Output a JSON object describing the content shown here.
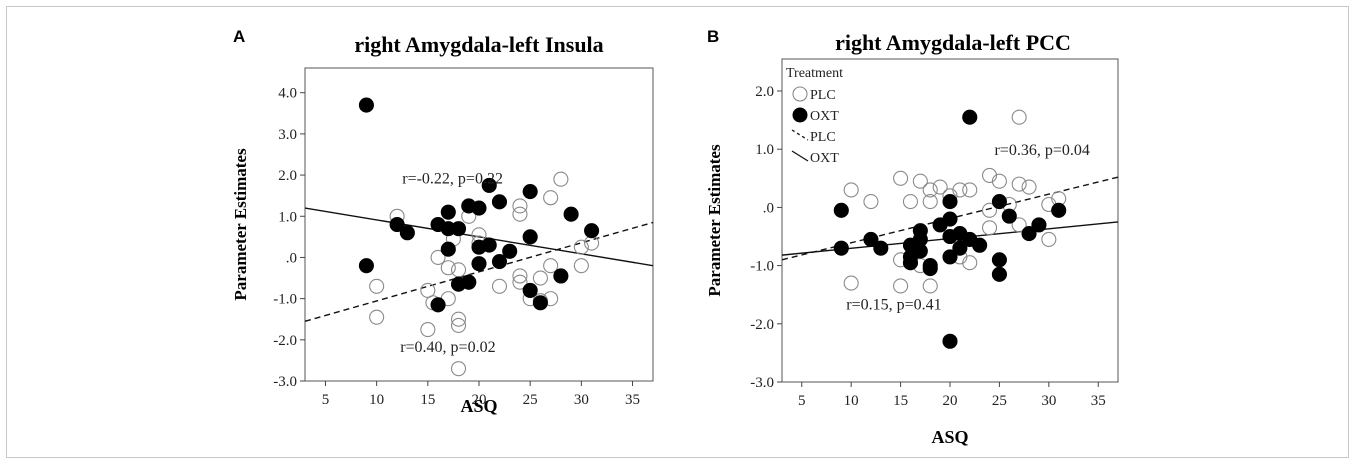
{
  "chart_data": [
    {
      "type": "scatter",
      "panel_label": "A",
      "title": "right Amygdala-left Insula",
      "xlabel": "ASQ",
      "ylabel": "Parameter Estimates",
      "xlim": [
        3,
        37
      ],
      "ylim": [
        -3.0,
        4.6
      ],
      "xticks": [
        5,
        10,
        15,
        20,
        25,
        30,
        35
      ],
      "xtick_labels": [
        "5",
        "10",
        "15",
        "20",
        "25",
        "30",
        "35"
      ],
      "yticks": [
        4.0,
        3.0,
        2.0,
        1.0,
        0.0,
        -1.0,
        -2.0,
        -3.0
      ],
      "ytick_labels": [
        "4.0",
        "3.0",
        "2.0",
        "1.0",
        ".0",
        "-1.0",
        "-2.0",
        "-3.0"
      ],
      "grid": false,
      "legend": null,
      "annotations": [
        {
          "text": "r=-0.22, p=0.22",
          "x": 12.5,
          "y": 1.8
        },
        {
          "text": "r=0.40, p=0.02",
          "x": 12.3,
          "y": -2.3
        }
      ],
      "series": [
        {
          "group": "PLC",
          "marker": "open-circle",
          "color": "#888888",
          "points": [
            [
              10,
              -0.7
            ],
            [
              10,
              -1.45
            ],
            [
              12,
              1.0
            ],
            [
              15,
              -0.8
            ],
            [
              15,
              -1.75
            ],
            [
              15.5,
              -1.1
            ],
            [
              16,
              0.0
            ],
            [
              17,
              -0.25
            ],
            [
              17,
              -1.0
            ],
            [
              17.5,
              0.45
            ],
            [
              18,
              -0.3
            ],
            [
              18,
              -1.5
            ],
            [
              18,
              -1.65
            ],
            [
              18,
              -2.7
            ],
            [
              19,
              1.0
            ],
            [
              19,
              -0.6
            ],
            [
              20,
              0.55
            ],
            [
              20,
              0.35
            ],
            [
              22,
              -0.7
            ],
            [
              24,
              1.25
            ],
            [
              24,
              1.05
            ],
            [
              24,
              -0.45
            ],
            [
              24,
              -0.6
            ],
            [
              25,
              -1.0
            ],
            [
              26,
              -0.5
            ],
            [
              26,
              -1.05
            ],
            [
              27,
              -0.2
            ],
            [
              27,
              1.45
            ],
            [
              27,
              -1.0
            ],
            [
              28,
              1.9
            ],
            [
              30,
              -0.2
            ],
            [
              30,
              0.25
            ],
            [
              31,
              0.35
            ]
          ]
        },
        {
          "group": "OXT",
          "marker": "filled-circle",
          "color": "#000000",
          "points": [
            [
              9,
              3.7
            ],
            [
              9,
              -0.2
            ],
            [
              12,
              0.8
            ],
            [
              13,
              0.6
            ],
            [
              16,
              0.8
            ],
            [
              16,
              -1.15
            ],
            [
              17,
              0.7
            ],
            [
              17,
              0.2
            ],
            [
              17,
              1.1
            ],
            [
              18,
              0.7
            ],
            [
              18,
              -0.65
            ],
            [
              19,
              1.25
            ],
            [
              19,
              -0.6
            ],
            [
              20,
              1.2
            ],
            [
              20,
              0.25
            ],
            [
              20,
              -0.15
            ],
            [
              21,
              1.75
            ],
            [
              21,
              0.3
            ],
            [
              22,
              1.35
            ],
            [
              22,
              -0.1
            ],
            [
              23,
              0.15
            ],
            [
              25,
              1.6
            ],
            [
              25,
              0.5
            ],
            [
              25,
              -0.8
            ],
            [
              26,
              -1.1
            ],
            [
              28,
              -0.45
            ],
            [
              29,
              1.05
            ],
            [
              31,
              0.65
            ]
          ]
        }
      ],
      "fit_lines": [
        {
          "group": "PLC",
          "style": "dashed",
          "x": [
            3,
            37
          ],
          "y": [
            -1.55,
            0.85
          ]
        },
        {
          "group": "OXT",
          "style": "solid",
          "x": [
            3,
            37
          ],
          "y": [
            1.2,
            -0.2
          ]
        }
      ]
    },
    {
      "type": "scatter",
      "panel_label": "B",
      "title": "right Amygdala-left PCC",
      "xlabel": "ASQ",
      "ylabel": "Parameter Estimates",
      "xlim": [
        3,
        37
      ],
      "ylim": [
        -3.0,
        2.55
      ],
      "xticks": [
        5,
        10,
        15,
        20,
        25,
        30,
        35
      ],
      "xtick_labels": [
        "5",
        "10",
        "15",
        "20",
        "25",
        "30",
        "35"
      ],
      "yticks": [
        2.0,
        1.0,
        0.0,
        -1.0,
        -2.0,
        -3.0
      ],
      "ytick_labels": [
        "2.0",
        "1.0",
        ".0",
        "-1.0",
        "-2.0",
        "-3.0"
      ],
      "grid": false,
      "legend": {
        "title": "Treatment",
        "placement": "top-left",
        "entries": [
          {
            "label": "PLC",
            "symbol": "open-circle"
          },
          {
            "label": "OXT",
            "symbol": "filled-circle"
          },
          {
            "label": "PLC",
            "symbol": "dashed-line"
          },
          {
            "label": "OXT",
            "symbol": "solid-line"
          }
        ]
      },
      "annotations": [
        {
          "text": "r=0.36, p=0.04",
          "x": 24.5,
          "y": 0.9
        },
        {
          "text": "r=0.15, p=0.41",
          "x": 9.5,
          "y": -1.75
        }
      ],
      "series": [
        {
          "group": "PLC",
          "marker": "open-circle",
          "color": "#888888",
          "points": [
            [
              10,
              0.3
            ],
            [
              10,
              -1.3
            ],
            [
              12,
              0.1
            ],
            [
              15,
              0.5
            ],
            [
              15,
              -1.35
            ],
            [
              15,
              -0.9
            ],
            [
              16,
              0.1
            ],
            [
              16,
              -0.95
            ],
            [
              17,
              0.45
            ],
            [
              17,
              -1.0
            ],
            [
              18,
              0.3
            ],
            [
              18,
              -1.35
            ],
            [
              18,
              0.1
            ],
            [
              19,
              0.35
            ],
            [
              20,
              0.2
            ],
            [
              21,
              0.3
            ],
            [
              21,
              -0.85
            ],
            [
              22,
              0.3
            ],
            [
              22,
              -0.95
            ],
            [
              24,
              0.55
            ],
            [
              24,
              -0.05
            ],
            [
              24,
              -0.35
            ],
            [
              25,
              0.45
            ],
            [
              26,
              0.05
            ],
            [
              27,
              1.55
            ],
            [
              27,
              0.4
            ],
            [
              27,
              -0.3
            ],
            [
              28,
              0.35
            ],
            [
              30,
              0.05
            ],
            [
              30,
              -0.55
            ],
            [
              31,
              0.15
            ]
          ]
        },
        {
          "group": "OXT",
          "marker": "filled-circle",
          "color": "#000000",
          "points": [
            [
              9,
              -0.05
            ],
            [
              9,
              -0.7
            ],
            [
              12,
              -0.55
            ],
            [
              13,
              -0.7
            ],
            [
              16,
              -0.65
            ],
            [
              16,
              -0.85
            ],
            [
              16,
              -0.95
            ],
            [
              17,
              -0.4
            ],
            [
              17,
              -0.75
            ],
            [
              17,
              -0.55
            ],
            [
              18,
              -1.0
            ],
            [
              18,
              -1.05
            ],
            [
              19,
              -0.3
            ],
            [
              20,
              0.1
            ],
            [
              20,
              -0.2
            ],
            [
              20,
              -0.5
            ],
            [
              20,
              -0.85
            ],
            [
              20,
              -2.3
            ],
            [
              21,
              -0.45
            ],
            [
              21,
              -0.7
            ],
            [
              22,
              1.55
            ],
            [
              22,
              -0.55
            ],
            [
              23,
              -0.65
            ],
            [
              25,
              0.1
            ],
            [
              25,
              -0.9
            ],
            [
              25,
              -1.15
            ],
            [
              26,
              -0.15
            ],
            [
              28,
              -0.45
            ],
            [
              29,
              -0.3
            ],
            [
              31,
              -0.05
            ]
          ]
        }
      ],
      "fit_lines": [
        {
          "group": "PLC",
          "style": "dashed",
          "x": [
            3,
            37
          ],
          "y": [
            -0.9,
            0.52
          ]
        },
        {
          "group": "OXT",
          "style": "solid",
          "x": [
            3,
            37
          ],
          "y": [
            -0.82,
            -0.25
          ]
        }
      ]
    }
  ]
}
